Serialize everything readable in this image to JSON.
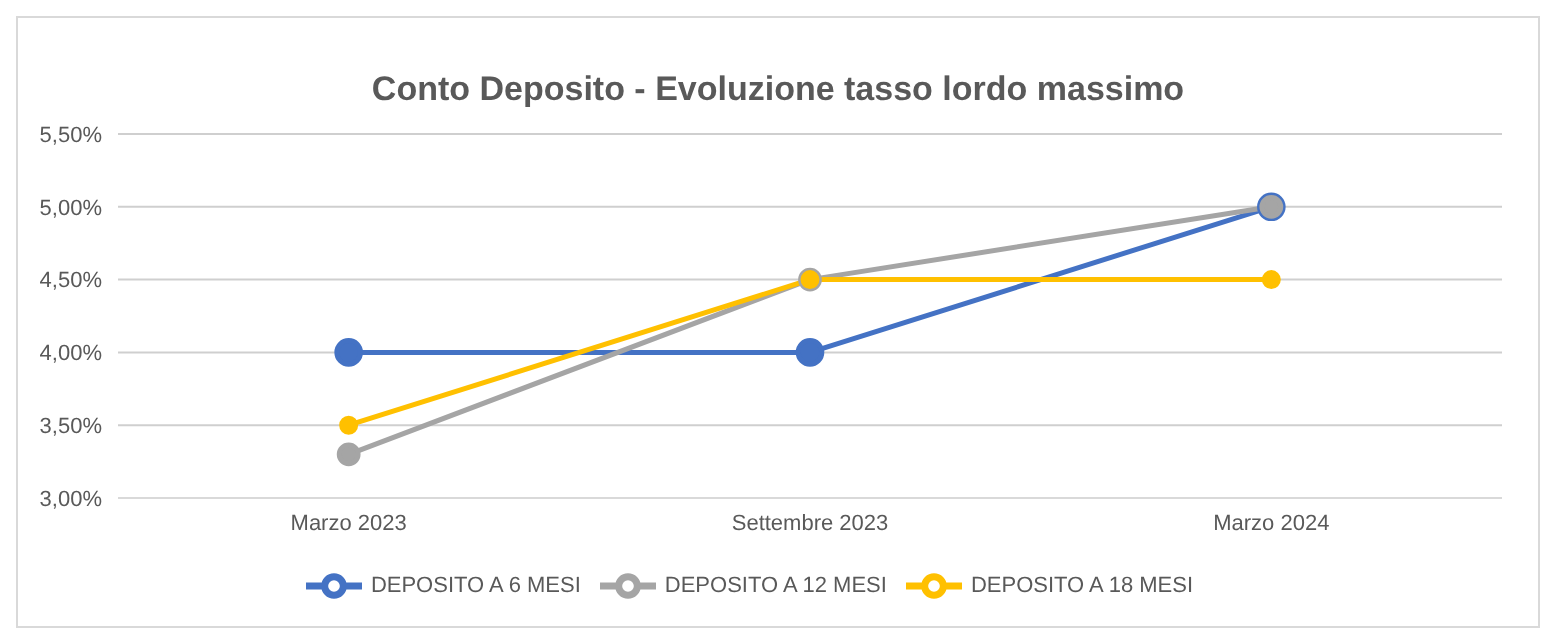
{
  "chart_data": {
    "type": "line",
    "title": "Conto Deposito - Evoluzione tasso lordo massimo",
    "categories": [
      "Marzo 2023",
      "Settembre 2023",
      "Marzo 2024"
    ],
    "series": [
      {
        "name": "DEPOSITO A 6 MESI",
        "color": "#4472c4",
        "values": [
          4.0,
          4.0,
          5.0
        ]
      },
      {
        "name": "DEPOSITO A 12 MESI",
        "color": "#a5a5a5",
        "values": [
          3.3,
          4.5,
          5.0
        ]
      },
      {
        "name": "DEPOSITO A 18 MESI",
        "color": "#ffc000",
        "values": [
          3.5,
          4.5,
          4.5
        ]
      }
    ],
    "ylim": [
      3,
      5.5
    ],
    "yticks": [
      {
        "value": 3,
        "label": "3,00%"
      },
      {
        "value": 3.5,
        "label": "3,50%"
      },
      {
        "value": 4,
        "label": "4,00%"
      },
      {
        "value": 4.5,
        "label": "4,50%"
      },
      {
        "value": 5,
        "label": "5,00%"
      },
      {
        "value": 5.5,
        "label": "5,50%"
      }
    ],
    "grid": "y",
    "legend": "bottom",
    "marker": "circle",
    "line_style": "solid"
  }
}
